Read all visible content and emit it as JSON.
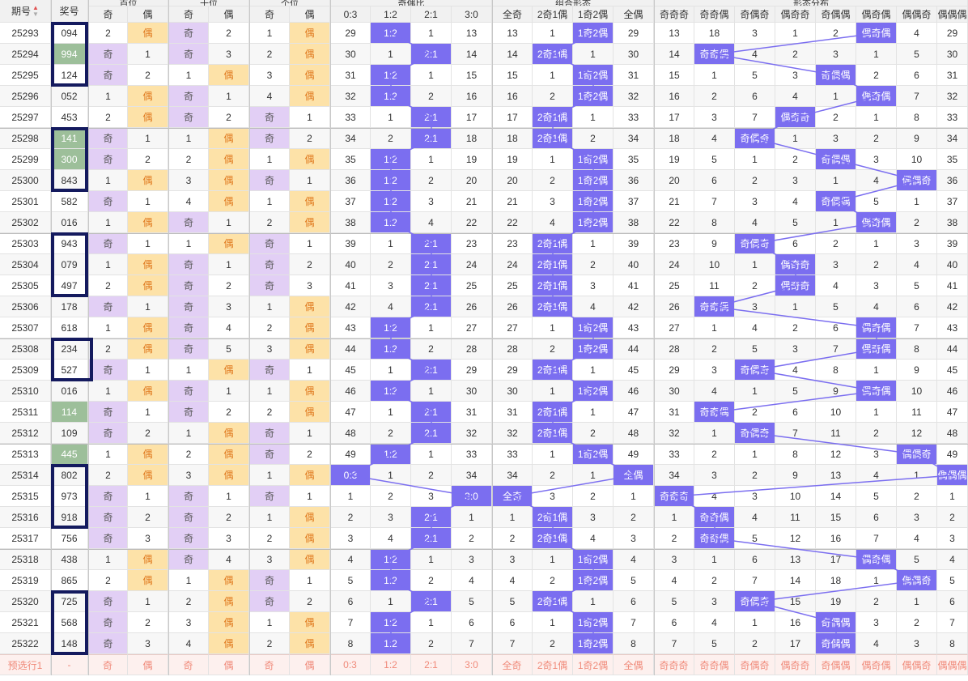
{
  "header": {
    "issue_label": "期号",
    "prize_label": "奖号",
    "groups": [
      "百位",
      "十位",
      "个位",
      "奇偶比",
      "组合形态",
      "形态分布"
    ],
    "sub": [
      "奇",
      "偶",
      "奇",
      "偶",
      "奇",
      "偶",
      "0:3",
      "1:2",
      "2:1",
      "3:0",
      "全奇",
      "2奇1偶",
      "1奇2偶",
      "全偶",
      "奇奇奇",
      "奇奇偶",
      "奇偶奇",
      "偶奇奇",
      "奇偶偶",
      "偶奇偶",
      "偶偶奇",
      "偶偶偶"
    ]
  },
  "colors": {
    "accent": "#7b6ef0",
    "odd_bg": "#e2cff5",
    "even_bg": "#fde2a8",
    "select_box": "#141a5e",
    "green_cell": "#9dbf9a"
  },
  "rows": [
    {
      "issue": "25293",
      "prize": "094",
      "green": false,
      "cells": [
        "2",
        "偶",
        "奇",
        "2",
        "1",
        "偶",
        "29",
        "1:2",
        "1",
        "13",
        "13",
        "1",
        "1奇2偶",
        "29",
        "13",
        "18",
        "3",
        "1",
        "2",
        "偶奇偶",
        "4",
        "29"
      ]
    },
    {
      "issue": "25294",
      "prize": "994",
      "green": true,
      "cells": [
        "奇",
        "1",
        "奇",
        "3",
        "2",
        "偶",
        "30",
        "1",
        "2:1",
        "14",
        "14",
        "2奇1偶",
        "1",
        "30",
        "14",
        "奇奇偶",
        "4",
        "2",
        "3",
        "1",
        "5",
        "30"
      ]
    },
    {
      "issue": "25295",
      "prize": "124",
      "green": false,
      "cells": [
        "奇",
        "2",
        "1",
        "偶",
        "3",
        "偶",
        "31",
        "1:2",
        "1",
        "15",
        "15",
        "1",
        "1奇2偶",
        "31",
        "15",
        "1",
        "5",
        "3",
        "奇偶偶",
        "2",
        "6",
        "31"
      ]
    },
    {
      "issue": "25296",
      "prize": "052",
      "green": false,
      "cells": [
        "1",
        "偶",
        "奇",
        "1",
        "4",
        "偶",
        "32",
        "1:2",
        "2",
        "16",
        "16",
        "2",
        "1奇2偶",
        "32",
        "16",
        "2",
        "6",
        "4",
        "1",
        "偶奇偶",
        "7",
        "32"
      ]
    },
    {
      "issue": "25297",
      "prize": "453",
      "green": false,
      "cells": [
        "2",
        "偶",
        "奇",
        "2",
        "奇",
        "1",
        "33",
        "1",
        "2:1",
        "17",
        "17",
        "2奇1偶",
        "1",
        "33",
        "17",
        "3",
        "7",
        "偶奇奇",
        "2",
        "1",
        "8",
        "33"
      ]
    },
    {
      "issue": "25298",
      "prize": "141",
      "green": true,
      "cells": [
        "奇",
        "1",
        "1",
        "偶",
        "奇",
        "2",
        "34",
        "2",
        "2:1",
        "18",
        "18",
        "2奇1偶",
        "2",
        "34",
        "18",
        "4",
        "奇偶奇",
        "1",
        "3",
        "2",
        "9",
        "34"
      ]
    },
    {
      "issue": "25299",
      "prize": "300",
      "green": true,
      "cells": [
        "奇",
        "2",
        "2",
        "偶",
        "1",
        "偶",
        "35",
        "1:2",
        "1",
        "19",
        "19",
        "1",
        "1奇2偶",
        "35",
        "19",
        "5",
        "1",
        "2",
        "奇偶偶",
        "3",
        "10",
        "35"
      ]
    },
    {
      "issue": "25300",
      "prize": "843",
      "green": false,
      "cells": [
        "1",
        "偶",
        "3",
        "偶",
        "奇",
        "1",
        "36",
        "1:2",
        "2",
        "20",
        "20",
        "2",
        "1奇2偶",
        "36",
        "20",
        "6",
        "2",
        "3",
        "1",
        "4",
        "偶偶奇",
        "36"
      ]
    },
    {
      "issue": "25301",
      "prize": "582",
      "green": false,
      "cells": [
        "奇",
        "1",
        "4",
        "偶",
        "1",
        "偶",
        "37",
        "1:2",
        "3",
        "21",
        "21",
        "3",
        "1奇2偶",
        "37",
        "21",
        "7",
        "3",
        "4",
        "奇偶偶",
        "5",
        "1",
        "37"
      ]
    },
    {
      "issue": "25302",
      "prize": "016",
      "green": false,
      "cells": [
        "1",
        "偶",
        "奇",
        "1",
        "2",
        "偶",
        "38",
        "1:2",
        "4",
        "22",
        "22",
        "4",
        "1奇2偶",
        "38",
        "22",
        "8",
        "4",
        "5",
        "1",
        "偶奇偶",
        "2",
        "38"
      ]
    },
    {
      "issue": "25303",
      "prize": "943",
      "green": false,
      "cells": [
        "奇",
        "1",
        "1",
        "偶",
        "奇",
        "1",
        "39",
        "1",
        "2:1",
        "23",
        "23",
        "2奇1偶",
        "1",
        "39",
        "23",
        "9",
        "奇偶奇",
        "6",
        "2",
        "1",
        "3",
        "39"
      ]
    },
    {
      "issue": "25304",
      "prize": "079",
      "green": false,
      "cells": [
        "1",
        "偶",
        "奇",
        "1",
        "奇",
        "2",
        "40",
        "2",
        "2:1",
        "24",
        "24",
        "2奇1偶",
        "2",
        "40",
        "24",
        "10",
        "1",
        "偶奇奇",
        "3",
        "2",
        "4",
        "40"
      ]
    },
    {
      "issue": "25305",
      "prize": "497",
      "green": false,
      "cells": [
        "2",
        "偶",
        "奇",
        "2",
        "奇",
        "3",
        "41",
        "3",
        "2:1",
        "25",
        "25",
        "2奇1偶",
        "3",
        "41",
        "25",
        "11",
        "2",
        "偶奇奇",
        "4",
        "3",
        "5",
        "41"
      ]
    },
    {
      "issue": "25306",
      "prize": "178",
      "green": false,
      "cells": [
        "奇",
        "1",
        "奇",
        "3",
        "1",
        "偶",
        "42",
        "4",
        "2:1",
        "26",
        "26",
        "2奇1偶",
        "4",
        "42",
        "26",
        "奇奇偶",
        "3",
        "1",
        "5",
        "4",
        "6",
        "42"
      ]
    },
    {
      "issue": "25307",
      "prize": "618",
      "green": false,
      "cells": [
        "1",
        "偶",
        "奇",
        "4",
        "2",
        "偶",
        "43",
        "1:2",
        "1",
        "27",
        "27",
        "1",
        "1奇2偶",
        "43",
        "27",
        "1",
        "4",
        "2",
        "6",
        "偶奇偶",
        "7",
        "43"
      ]
    },
    {
      "issue": "25308",
      "prize": "234",
      "green": false,
      "cells": [
        "2",
        "偶",
        "奇",
        "5",
        "3",
        "偶",
        "44",
        "1:2",
        "2",
        "28",
        "28",
        "2",
        "1奇2偶",
        "44",
        "28",
        "2",
        "5",
        "3",
        "7",
        "偶奇偶",
        "8",
        "44"
      ]
    },
    {
      "issue": "25309",
      "prize": "527",
      "green": false,
      "cells": [
        "奇",
        "1",
        "1",
        "偶",
        "奇",
        "1",
        "45",
        "1",
        "2:1",
        "29",
        "29",
        "2奇1偶",
        "1",
        "45",
        "29",
        "3",
        "奇偶奇",
        "4",
        "8",
        "1",
        "9",
        "45"
      ]
    },
    {
      "issue": "25310",
      "prize": "016",
      "green": false,
      "cells": [
        "1",
        "偶",
        "奇",
        "1",
        "1",
        "偶",
        "46",
        "1:2",
        "1",
        "30",
        "30",
        "1",
        "1奇2偶",
        "46",
        "30",
        "4",
        "1",
        "5",
        "9",
        "偶奇偶",
        "10",
        "46"
      ]
    },
    {
      "issue": "25311",
      "prize": "114",
      "green": true,
      "cells": [
        "奇",
        "1",
        "奇",
        "2",
        "2",
        "偶",
        "47",
        "1",
        "2:1",
        "31",
        "31",
        "2奇1偶",
        "1",
        "47",
        "31",
        "奇奇偶",
        "2",
        "6",
        "10",
        "1",
        "11",
        "47"
      ]
    },
    {
      "issue": "25312",
      "prize": "109",
      "green": false,
      "cells": [
        "奇",
        "2",
        "1",
        "偶",
        "奇",
        "1",
        "48",
        "2",
        "2:1",
        "32",
        "32",
        "2奇1偶",
        "2",
        "48",
        "32",
        "1",
        "奇偶奇",
        "7",
        "11",
        "2",
        "12",
        "48"
      ]
    },
    {
      "issue": "25313",
      "prize": "445",
      "green": true,
      "cells": [
        "1",
        "偶",
        "2",
        "偶",
        "奇",
        "2",
        "49",
        "1:2",
        "1",
        "33",
        "33",
        "1",
        "1奇2偶",
        "49",
        "33",
        "2",
        "1",
        "8",
        "12",
        "3",
        "偶偶奇",
        "49"
      ]
    },
    {
      "issue": "25314",
      "prize": "802",
      "green": false,
      "cells": [
        "2",
        "偶",
        "3",
        "偶",
        "1",
        "偶",
        "0:3",
        "1",
        "2",
        "34",
        "34",
        "2",
        "1",
        "全偶",
        "34",
        "3",
        "2",
        "9",
        "13",
        "4",
        "1",
        "偶偶偶"
      ]
    },
    {
      "issue": "25315",
      "prize": "973",
      "green": false,
      "cells": [
        "奇",
        "1",
        "奇",
        "1",
        "奇",
        "1",
        "1",
        "2",
        "3",
        "3:0",
        "全奇",
        "3",
        "2",
        "1",
        "奇奇奇",
        "4",
        "3",
        "10",
        "14",
        "5",
        "2",
        "1"
      ]
    },
    {
      "issue": "25316",
      "prize": "918",
      "green": false,
      "cells": [
        "奇",
        "2",
        "奇",
        "2",
        "1",
        "偶",
        "2",
        "3",
        "2:1",
        "1",
        "1",
        "2奇1偶",
        "3",
        "2",
        "1",
        "奇奇偶",
        "4",
        "11",
        "15",
        "6",
        "3",
        "2"
      ]
    },
    {
      "issue": "25317",
      "prize": "756",
      "green": false,
      "cells": [
        "奇",
        "3",
        "奇",
        "3",
        "2",
        "偶",
        "3",
        "4",
        "2:1",
        "2",
        "2",
        "2奇1偶",
        "4",
        "3",
        "2",
        "奇奇偶",
        "5",
        "12",
        "16",
        "7",
        "4",
        "3"
      ]
    },
    {
      "issue": "25318",
      "prize": "438",
      "green": false,
      "cells": [
        "1",
        "偶",
        "奇",
        "4",
        "3",
        "偶",
        "4",
        "1:2",
        "1",
        "3",
        "3",
        "1",
        "1奇2偶",
        "4",
        "3",
        "1",
        "6",
        "13",
        "17",
        "偶奇偶",
        "5",
        "4"
      ]
    },
    {
      "issue": "25319",
      "prize": "865",
      "green": false,
      "cells": [
        "2",
        "偶",
        "1",
        "偶",
        "奇",
        "1",
        "5",
        "1:2",
        "2",
        "4",
        "4",
        "2",
        "1奇2偶",
        "5",
        "4",
        "2",
        "7",
        "14",
        "18",
        "1",
        "偶偶奇",
        "5"
      ]
    },
    {
      "issue": "25320",
      "prize": "725",
      "green": false,
      "cells": [
        "奇",
        "1",
        "2",
        "偶",
        "奇",
        "2",
        "6",
        "1",
        "2:1",
        "5",
        "5",
        "2奇1偶",
        "1",
        "6",
        "5",
        "3",
        "奇偶奇",
        "15",
        "19",
        "2",
        "1",
        "6"
      ]
    },
    {
      "issue": "25321",
      "prize": "568",
      "green": false,
      "cells": [
        "奇",
        "2",
        "3",
        "偶",
        "1",
        "偶",
        "7",
        "1:2",
        "1",
        "6",
        "6",
        "1",
        "1奇2偶",
        "7",
        "6",
        "4",
        "1",
        "16",
        "奇偶偶",
        "3",
        "2",
        "7"
      ]
    },
    {
      "issue": "25322",
      "prize": "148",
      "green": false,
      "cells": [
        "奇",
        "3",
        "4",
        "偶",
        "2",
        "偶",
        "8",
        "1:2",
        "2",
        "7",
        "7",
        "2",
        "1奇2偶",
        "8",
        "7",
        "5",
        "2",
        "17",
        "奇偶偶",
        "4",
        "3",
        "8"
      ]
    }
  ],
  "predict": {
    "label": "预选行1",
    "prize": "-",
    "cells": [
      "奇",
      "偶",
      "奇",
      "偶",
      "奇",
      "偶",
      "0:3",
      "1:2",
      "2:1",
      "3:0",
      "全奇",
      "2奇1偶",
      "1奇2偶",
      "全偶",
      "奇奇奇",
      "奇奇偶",
      "奇偶奇",
      "偶奇奇",
      "奇偶偶",
      "偶奇偶",
      "偶偶奇",
      "偶偶偶"
    ]
  }
}
